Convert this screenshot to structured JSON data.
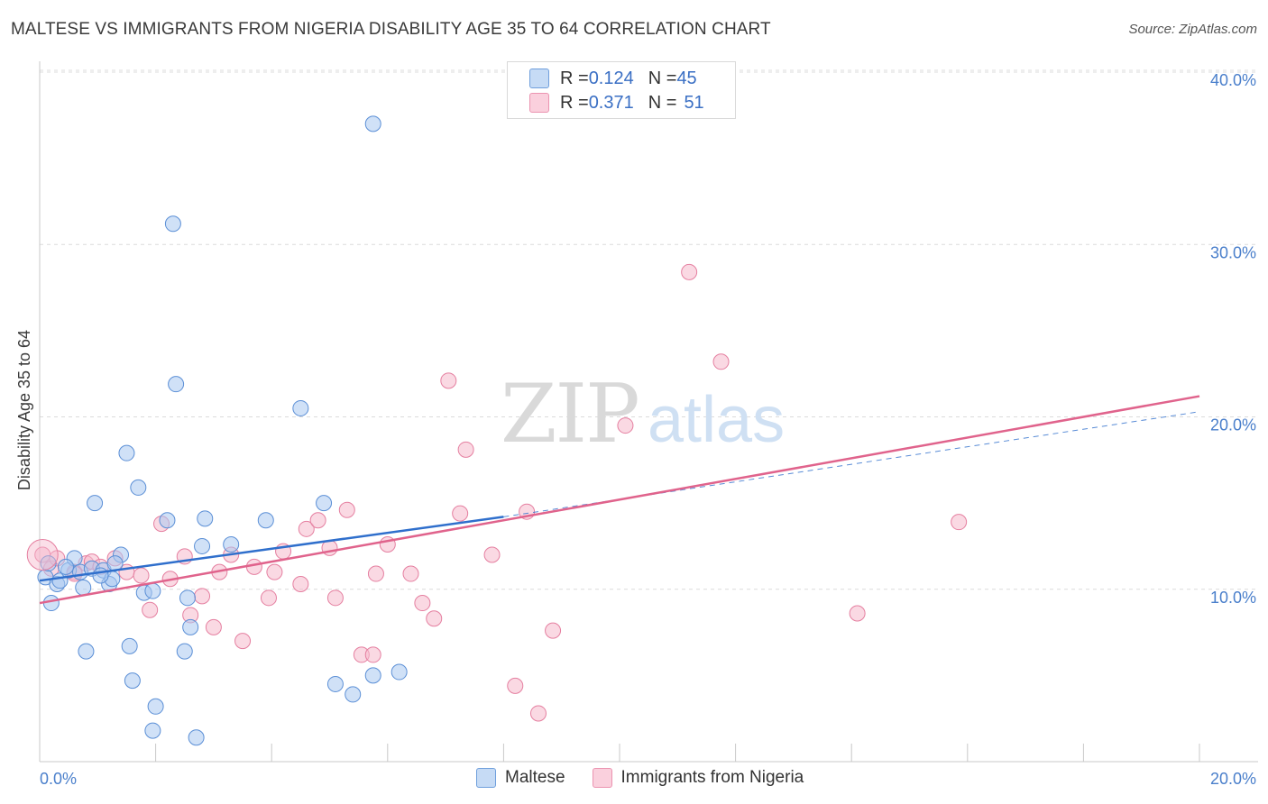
{
  "header": {
    "title": "MALTESE VS IMMIGRANTS FROM NIGERIA DISABILITY AGE 35 TO 64 CORRELATION CHART",
    "source": "Source: ZipAtlas.com"
  },
  "watermark": {
    "zip": "ZIP",
    "atlas": "atlas"
  },
  "legend_top": {
    "rows": [
      {
        "r_label": "R = ",
        "r_value": "0.124",
        "n_label": "N = ",
        "n_value": "45",
        "color": "#a9c8f0"
      },
      {
        "r_label": "R = ",
        "r_value": "0.371",
        "n_label": "N = ",
        "n_value": "51",
        "color": "#f6b9cc"
      }
    ]
  },
  "legend_bottom": {
    "items": [
      {
        "label": "Maltese",
        "color": "#a9c8f0"
      },
      {
        "label": "Immigrants from Nigeria",
        "color": "#f6b9cc"
      }
    ]
  },
  "chart_data": {
    "type": "scatter",
    "title": "MALTESE VS IMMIGRANTS FROM NIGERIA DISABILITY AGE 35 TO 64 CORRELATION CHART",
    "xlabel": "",
    "ylabel": "Disability Age 35 to 64",
    "xlim": [
      0,
      20
    ],
    "ylim": [
      0,
      40
    ],
    "x_tick_labels": [
      "0.0%",
      "20.0%"
    ],
    "y_ticks": [
      10,
      20,
      30,
      40
    ],
    "y_tick_labels": [
      "10.0%",
      "20.0%",
      "30.0%",
      "40.0%"
    ],
    "grid": true,
    "series": [
      {
        "name": "Maltese",
        "color": "#a9c8f0",
        "stroke": "#5b8fd6",
        "trend_color": "#2f6fcc",
        "trend": {
          "x0": 0,
          "y0": 10.5,
          "x1": 8,
          "y1": 14.2,
          "dash_x1": 20,
          "dash_y1": 20.3
        },
        "points": [
          [
            0.1,
            10.7
          ],
          [
            0.2,
            9.2
          ],
          [
            0.3,
            10.3
          ],
          [
            0.35,
            10.5
          ],
          [
            0.5,
            11.1
          ],
          [
            0.6,
            11.8
          ],
          [
            0.7,
            11.0
          ],
          [
            0.75,
            10.1
          ],
          [
            0.8,
            6.4
          ],
          [
            0.9,
            11.2
          ],
          [
            0.95,
            15.0
          ],
          [
            1.1,
            11.1
          ],
          [
            1.2,
            10.3
          ],
          [
            1.25,
            10.6
          ],
          [
            1.4,
            12.0
          ],
          [
            1.55,
            6.7
          ],
          [
            1.6,
            4.7
          ],
          [
            1.5,
            17.9
          ],
          [
            1.7,
            15.9
          ],
          [
            1.8,
            9.8
          ],
          [
            1.95,
            9.9
          ],
          [
            1.95,
            1.8
          ],
          [
            2.0,
            3.2
          ],
          [
            2.2,
            14.0
          ],
          [
            2.3,
            31.2
          ],
          [
            2.35,
            21.9
          ],
          [
            2.5,
            6.4
          ],
          [
            2.55,
            9.5
          ],
          [
            2.6,
            7.8
          ],
          [
            2.7,
            1.4
          ],
          [
            2.8,
            12.5
          ],
          [
            2.85,
            14.1
          ],
          [
            3.3,
            12.6
          ],
          [
            3.9,
            14.0
          ],
          [
            4.5,
            20.5
          ],
          [
            4.9,
            15.0
          ],
          [
            5.1,
            4.5
          ],
          [
            5.4,
            3.9
          ],
          [
            5.75,
            37.0
          ],
          [
            5.75,
            5.0
          ],
          [
            6.2,
            5.2
          ],
          [
            0.15,
            11.5
          ],
          [
            1.3,
            11.5
          ],
          [
            0.45,
            11.3
          ],
          [
            1.05,
            10.8
          ]
        ]
      },
      {
        "name": "Immigrants from Nigeria",
        "color": "#f6b9cc",
        "stroke": "#e57fa0",
        "trend_color": "#e0638c",
        "trend": {
          "x0": 0,
          "y0": 9.2,
          "x1": 20,
          "y1": 21.2
        },
        "points": [
          [
            0.05,
            12.0
          ],
          [
            0.2,
            11.2
          ],
          [
            0.3,
            11.8
          ],
          [
            0.6,
            11.0
          ],
          [
            0.8,
            11.5
          ],
          [
            0.9,
            11.6
          ],
          [
            1.05,
            11.3
          ],
          [
            1.3,
            11.8
          ],
          [
            1.5,
            11.0
          ],
          [
            1.75,
            10.8
          ],
          [
            1.9,
            8.8
          ],
          [
            2.1,
            13.8
          ],
          [
            2.25,
            10.6
          ],
          [
            2.5,
            11.9
          ],
          [
            2.6,
            8.5
          ],
          [
            2.8,
            9.6
          ],
          [
            3.0,
            7.8
          ],
          [
            3.1,
            11.0
          ],
          [
            3.3,
            12.0
          ],
          [
            3.5,
            7.0
          ],
          [
            3.7,
            11.3
          ],
          [
            3.95,
            9.5
          ],
          [
            4.05,
            11.0
          ],
          [
            4.2,
            12.2
          ],
          [
            4.5,
            10.3
          ],
          [
            4.6,
            13.5
          ],
          [
            4.8,
            14.0
          ],
          [
            5.0,
            12.4
          ],
          [
            5.1,
            9.5
          ],
          [
            5.3,
            14.6
          ],
          [
            5.55,
            6.2
          ],
          [
            5.75,
            6.2
          ],
          [
            5.8,
            10.9
          ],
          [
            6.0,
            12.6
          ],
          [
            6.4,
            10.9
          ],
          [
            6.6,
            9.2
          ],
          [
            6.8,
            8.3
          ],
          [
            7.05,
            22.1
          ],
          [
            7.25,
            14.4
          ],
          [
            7.35,
            18.1
          ],
          [
            7.8,
            12.0
          ],
          [
            8.2,
            4.4
          ],
          [
            8.4,
            14.5
          ],
          [
            8.6,
            2.8
          ],
          [
            8.85,
            7.6
          ],
          [
            10.1,
            19.5
          ],
          [
            11.2,
            28.4
          ],
          [
            11.75,
            23.2
          ],
          [
            14.1,
            8.6
          ],
          [
            15.85,
            13.9
          ],
          [
            0.6,
            10.9
          ]
        ]
      }
    ]
  }
}
